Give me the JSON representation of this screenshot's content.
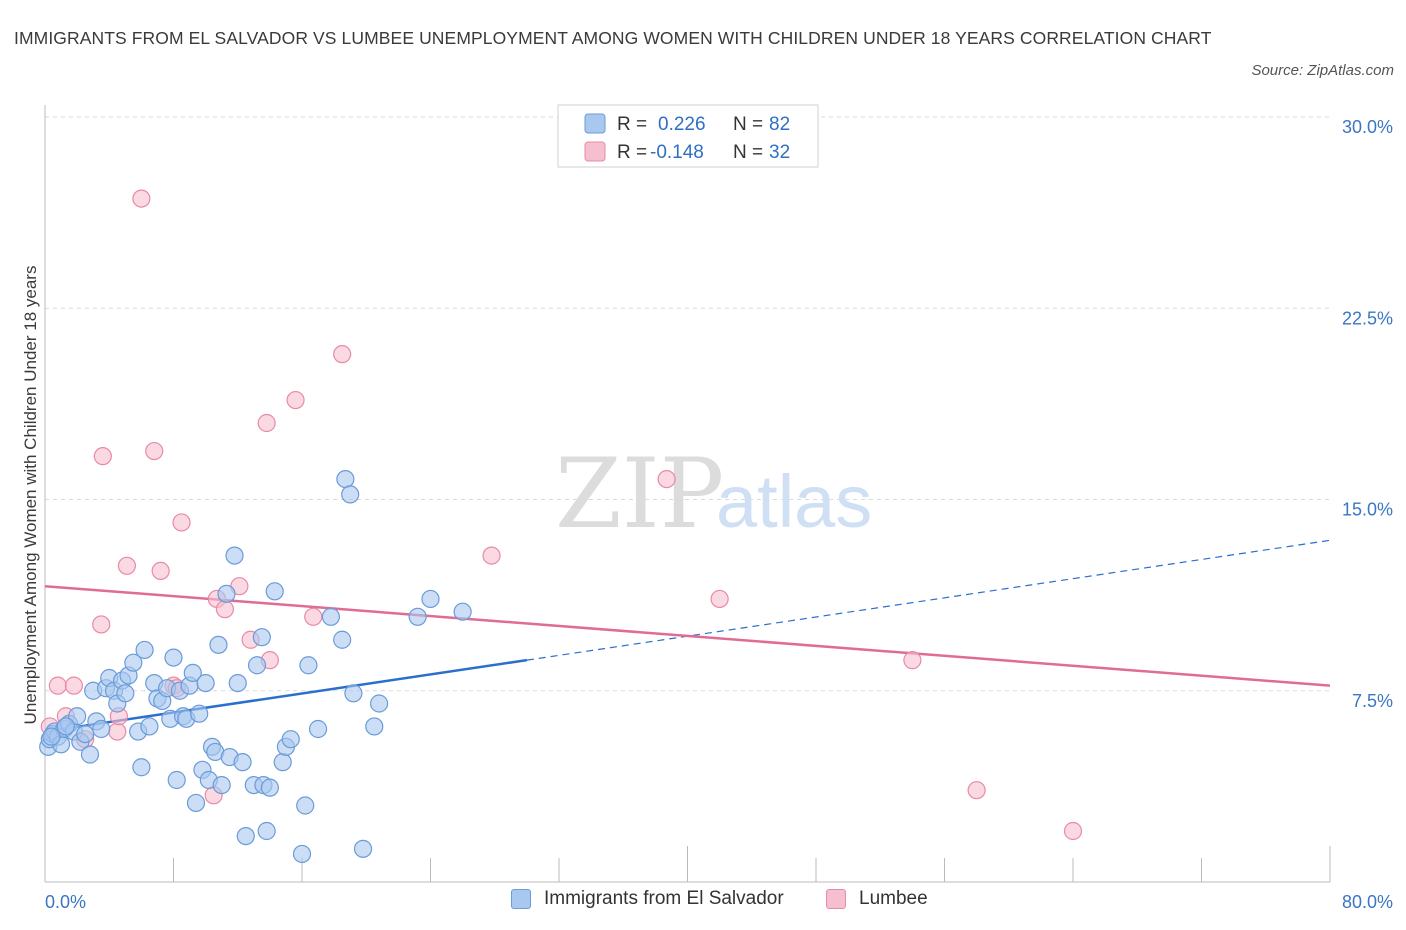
{
  "title": "IMMIGRANTS FROM EL SALVADOR VS LUMBEE UNEMPLOYMENT AMONG WOMEN WITH CHILDREN UNDER 18 YEARS CORRELATION CHART",
  "source": "Source: ZipAtlas.com",
  "watermark": {
    "zip": "ZIP",
    "atlas": "atlas"
  },
  "legend_box": {
    "rows": [
      {
        "r_label": "R = ",
        "r_value": "0.226",
        "n_label": "N = ",
        "n_value": "82"
      },
      {
        "r_label": "R = ",
        "r_value": "-0.148",
        "n_label": "N = ",
        "n_value": "32"
      }
    ]
  },
  "bottom_legend": [
    {
      "label": "Immigrants from El Salvador"
    },
    {
      "label": "Lumbee"
    }
  ],
  "colors": {
    "blue_fill": "#a9c8f0",
    "blue_stroke": "#6b9bd8",
    "blue_line": "#2b6fcc",
    "pink_fill": "#f6bfd0",
    "pink_stroke": "#e88aa6",
    "pink_line": "#e06c95",
    "grid": "#d9d9d9",
    "tick_text": "#3a76c4"
  },
  "chart_data": {
    "type": "scatter",
    "title": "IMMIGRANTS FROM EL SALVADOR VS LUMBEE UNEMPLOYMENT AMONG WOMEN WITH CHILDREN UNDER 18 YEARS CORRELATION CHART",
    "xlabel": "",
    "ylabel": "Unemployment Among Women with Children Under 18 years",
    "xlim": [
      0,
      80
    ],
    "ylim": [
      0,
      30
    ],
    "x_tick_labels": [
      "0.0%",
      "80.0%"
    ],
    "y_ticks": [
      7.5,
      15.0,
      22.5,
      30.0
    ],
    "y_tick_labels": [
      "7.5%",
      "15.0%",
      "22.5%",
      "30.0%"
    ],
    "grid": true,
    "legend_position": "top-center",
    "series": [
      {
        "name": "Immigrants from El Salvador",
        "R": 0.226,
        "N": 82,
        "trend": {
          "x0": 0,
          "y0": 5.9,
          "x1": 30,
          "y1": 8.7,
          "dashed_to_x": 80,
          "dashed_to_y": 13.4
        },
        "points": [
          [
            0.2,
            5.3
          ],
          [
            0.3,
            5.6
          ],
          [
            0.5,
            5.8
          ],
          [
            0.6,
            5.9
          ],
          [
            0.8,
            5.7
          ],
          [
            1.0,
            5.4
          ],
          [
            1.2,
            6.0
          ],
          [
            1.5,
            6.2
          ],
          [
            1.8,
            5.9
          ],
          [
            2.0,
            6.5
          ],
          [
            2.2,
            5.5
          ],
          [
            2.5,
            5.8
          ],
          [
            2.8,
            5.0
          ],
          [
            3.0,
            7.5
          ],
          [
            3.2,
            6.3
          ],
          [
            3.5,
            6.0
          ],
          [
            3.8,
            7.6
          ],
          [
            4.0,
            8.0
          ],
          [
            4.3,
            7.5
          ],
          [
            4.5,
            7.0
          ],
          [
            4.8,
            7.9
          ],
          [
            5.0,
            7.4
          ],
          [
            5.2,
            8.1
          ],
          [
            5.5,
            8.6
          ],
          [
            5.8,
            5.9
          ],
          [
            6.0,
            4.5
          ],
          [
            6.2,
            9.1
          ],
          [
            6.5,
            6.1
          ],
          [
            6.8,
            7.8
          ],
          [
            7.0,
            7.2
          ],
          [
            7.3,
            7.1
          ],
          [
            7.6,
            7.6
          ],
          [
            7.8,
            6.4
          ],
          [
            8.0,
            8.8
          ],
          [
            8.2,
            4.0
          ],
          [
            8.4,
            7.5
          ],
          [
            8.6,
            6.5
          ],
          [
            8.8,
            6.4
          ],
          [
            9.0,
            7.7
          ],
          [
            9.2,
            8.2
          ],
          [
            9.4,
            3.1
          ],
          [
            9.6,
            6.6
          ],
          [
            9.8,
            4.4
          ],
          [
            10.0,
            7.8
          ],
          [
            10.2,
            4.0
          ],
          [
            10.4,
            5.3
          ],
          [
            10.6,
            5.1
          ],
          [
            10.8,
            9.3
          ],
          [
            11.0,
            3.8
          ],
          [
            11.3,
            11.3
          ],
          [
            11.5,
            4.9
          ],
          [
            11.8,
            12.8
          ],
          [
            12.0,
            7.8
          ],
          [
            12.3,
            4.7
          ],
          [
            12.5,
            1.8
          ],
          [
            13.0,
            3.8
          ],
          [
            13.2,
            8.5
          ],
          [
            13.5,
            9.6
          ],
          [
            13.6,
            3.8
          ],
          [
            13.8,
            2.0
          ],
          [
            14.0,
            3.7
          ],
          [
            14.3,
            11.4
          ],
          [
            14.8,
            4.7
          ],
          [
            15.0,
            5.3
          ],
          [
            15.3,
            5.6
          ],
          [
            16.0,
            1.1
          ],
          [
            16.2,
            3.0
          ],
          [
            16.4,
            8.5
          ],
          [
            17.0,
            6.0
          ],
          [
            17.8,
            10.4
          ],
          [
            18.5,
            9.5
          ],
          [
            18.7,
            15.8
          ],
          [
            19.0,
            15.2
          ],
          [
            19.2,
            7.4
          ],
          [
            19.8,
            1.3
          ],
          [
            20.5,
            6.1
          ],
          [
            20.8,
            7.0
          ],
          [
            23.2,
            10.4
          ],
          [
            24.0,
            11.1
          ],
          [
            26.0,
            10.6
          ],
          [
            0.4,
            5.7
          ],
          [
            1.3,
            6.1
          ]
        ]
      },
      {
        "name": "Lumbee",
        "R": -0.148,
        "N": 32,
        "trend": {
          "x0": 0,
          "y0": 11.6,
          "x1": 80,
          "y1": 7.7
        },
        "points": [
          [
            0.3,
            6.1
          ],
          [
            0.8,
            7.7
          ],
          [
            1.3,
            6.5
          ],
          [
            1.8,
            7.7
          ],
          [
            2.5,
            5.6
          ],
          [
            3.5,
            10.1
          ],
          [
            3.6,
            16.7
          ],
          [
            4.5,
            5.9
          ],
          [
            4.6,
            6.5
          ],
          [
            5.1,
            12.4
          ],
          [
            6.0,
            26.8
          ],
          [
            6.8,
            16.9
          ],
          [
            7.2,
            12.2
          ],
          [
            8.0,
            7.7
          ],
          [
            8.5,
            14.1
          ],
          [
            10.5,
            3.4
          ],
          [
            10.7,
            11.1
          ],
          [
            11.2,
            10.7
          ],
          [
            12.1,
            11.6
          ],
          [
            12.8,
            9.5
          ],
          [
            13.8,
            18.0
          ],
          [
            14.0,
            8.7
          ],
          [
            15.6,
            18.9
          ],
          [
            16.7,
            10.4
          ],
          [
            18.5,
            20.7
          ],
          [
            27.8,
            12.8
          ],
          [
            38.7,
            15.8
          ],
          [
            42.0,
            11.1
          ],
          [
            54.0,
            8.7
          ],
          [
            58.0,
            3.6
          ],
          [
            64.0,
            2.0
          ],
          [
            8.2,
            7.6
          ]
        ]
      }
    ]
  }
}
